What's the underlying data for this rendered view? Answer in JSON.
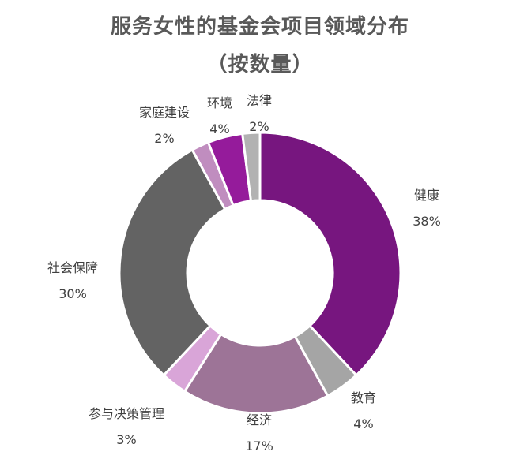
{
  "chart_data": {
    "type": "donut",
    "title": "服务女性的基金会项目领域分布",
    "subtitle": "（按数量）",
    "start_angle_deg": 0,
    "direction": "clockwise",
    "slices": [
      {
        "label": "健康",
        "value": 38,
        "value_label": "38%",
        "color": "#77167f"
      },
      {
        "label": "教育",
        "value": 4,
        "value_label": "4%",
        "color": "#a5a5a5"
      },
      {
        "label": "经济",
        "value": 17,
        "value_label": "17%",
        "color": "#9d7497"
      },
      {
        "label": "参与决策管理",
        "value": 3,
        "value_label": "3%",
        "color": "#d9a5d8"
      },
      {
        "label": "社会保障",
        "value": 30,
        "value_label": "30%",
        "color": "#636363"
      },
      {
        "label": "家庭建设",
        "value": 2,
        "value_label": "2%",
        "color": "#c08dbf"
      },
      {
        "label": "环境",
        "value": 4,
        "value_label": "4%",
        "color": "#951b9b"
      },
      {
        "label": "法律",
        "value": 2,
        "value_label": "2%",
        "color": "#b2b2b2"
      }
    ],
    "legend": "none"
  }
}
